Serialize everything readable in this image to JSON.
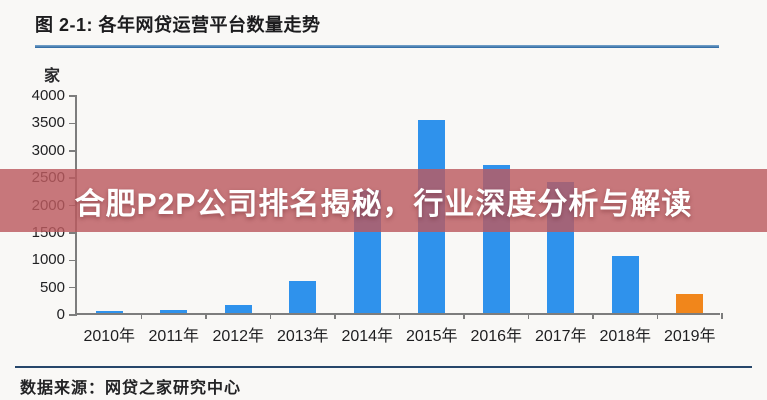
{
  "header": {
    "title": "图 2-1: 各年网贷运营平台数量走势"
  },
  "overlay": {
    "text": "合肥P2P公司排名揭秘，行业深度分析与解读"
  },
  "footer": {
    "source": "数据来源：网贷之家研究中心"
  },
  "colors": {
    "bar_blue": "#2f92ec",
    "bar_orange": "#f1861b",
    "axis_gray": "#7d7d7d",
    "accent_line_top": "#2b66a0",
    "accent_line_bottom": "#27476b",
    "overlay_red": "rgba(188,90,95,0.82)"
  },
  "chart_data": {
    "type": "bar",
    "title": "图 2-1: 各年网贷运营平台数量走势",
    "unit_label": "家",
    "categories": [
      "2010年",
      "2011年",
      "2012年",
      "2013年",
      "2014年",
      "2015年",
      "2016年",
      "2017年",
      "2018年",
      "2019年"
    ],
    "values": [
      30,
      60,
      150,
      580,
      2250,
      3520,
      2700,
      2400,
      1050,
      340
    ],
    "ylim": [
      0,
      4000
    ],
    "ytick_step": 500,
    "ytick_labels": [
      "4000",
      "3500",
      "3000",
      "2500",
      "2000",
      "1500",
      "1000",
      "500",
      "0"
    ],
    "grid": false,
    "legend": "none",
    "default_bar_color": "#2f92ec",
    "highlight": {
      "index": 9,
      "color": "#f1861b"
    },
    "source": "数据来源：网贷之家研究中心"
  }
}
